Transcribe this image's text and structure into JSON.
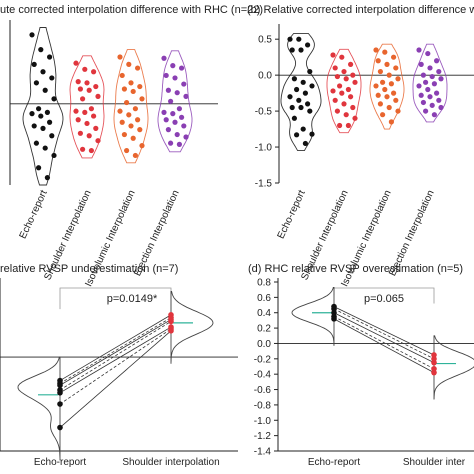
{
  "chart_data": [
    {
      "type": "violin",
      "title": "ute corrected interpolation difference with RHC (n=22)",
      "categories": [
        "Echo-report",
        "Shoulder Interpolation",
        "Isovolumic Interpolation",
        "Ejection Interpolation"
      ],
      "series_colors": [
        "#111111",
        "#e0353d",
        "#e8652e",
        "#8a3fb3"
      ],
      "values": [
        [
          2.8,
          2.2,
          1.9,
          1.6,
          1.3,
          1.05,
          0.85,
          0.55,
          0.2,
          -0.2,
          -0.35,
          -0.4,
          -0.5,
          -0.75,
          -0.9,
          -1.0,
          -1.3,
          -1.6,
          -1.8,
          -2.1,
          -2.6,
          -3.0
        ],
        [
          1.65,
          1.4,
          1.3,
          0.9,
          0.85,
          0.7,
          0.6,
          0.55,
          0.3,
          0.2,
          -0.2,
          -0.3,
          -0.35,
          -0.5,
          -0.65,
          -0.8,
          -1.0,
          -1.2,
          -1.3,
          -1.5,
          -1.85,
          -1.9
        ],
        [
          1.9,
          1.6,
          1.45,
          1.15,
          0.85,
          0.7,
          0.6,
          0.5,
          0.2,
          0.05,
          -0.2,
          -0.3,
          -0.45,
          -0.65,
          -0.75,
          -0.9,
          -1.05,
          -1.25,
          -1.4,
          -1.7,
          -1.9,
          -2.1
        ],
        [
          1.85,
          1.55,
          1.45,
          1.15,
          1.05,
          0.8,
          0.55,
          0.45,
          0.3,
          0.1,
          -0.2,
          -0.35,
          -0.4,
          -0.55,
          -0.65,
          -0.75,
          -0.9,
          -1.05,
          -1.25,
          -1.35,
          -1.6,
          -1.65
        ]
      ],
      "zero_line": 0
    },
    {
      "type": "violin",
      "title": "(b) Relative corrected interpolation difference with RHC (",
      "categories": [
        "Echo-report",
        "Shoulder Interpolation",
        "Isovolumic Interpolation",
        "Ejection Interpolation"
      ],
      "series_colors": [
        "#111111",
        "#e0353d",
        "#e8652e",
        "#8a3fb3"
      ],
      "yticks": [
        0.5,
        0.0,
        -0.5,
        -1.0,
        -1.5
      ],
      "ylim": [
        -1.5,
        0.6
      ],
      "values": [
        [
          0.5,
          0.5,
          0.42,
          0.35,
          0.35,
          0.05,
          -0.05,
          -0.1,
          -0.15,
          -0.2,
          -0.25,
          -0.3,
          -0.35,
          -0.4,
          -0.45,
          -0.45,
          -0.5,
          -0.6,
          -0.75,
          -0.82,
          -0.83,
          -0.95
        ],
        [
          0.28,
          0.25,
          0.15,
          0.1,
          0.05,
          0.0,
          -0.02,
          -0.05,
          -0.1,
          -0.15,
          -0.2,
          -0.22,
          -0.25,
          -0.3,
          -0.35,
          -0.4,
          -0.45,
          -0.5,
          -0.55,
          -0.6,
          -0.7,
          -0.7
        ],
        [
          0.35,
          0.32,
          0.25,
          0.2,
          0.15,
          0.1,
          0.05,
          0.0,
          -0.05,
          -0.1,
          -0.12,
          -0.15,
          -0.2,
          -0.25,
          -0.28,
          -0.3,
          -0.35,
          -0.4,
          -0.45,
          -0.5,
          -0.55,
          -0.65
        ],
        [
          0.35,
          0.3,
          0.2,
          0.15,
          0.1,
          0.05,
          0.0,
          -0.02,
          -0.05,
          -0.1,
          -0.12,
          -0.15,
          -0.2,
          -0.25,
          -0.28,
          -0.3,
          -0.35,
          -0.38,
          -0.42,
          -0.45,
          -0.5,
          -0.55
        ]
      ],
      "zero_line": 0
    },
    {
      "type": "paired-violin",
      "title": "relative RVSP underestimation (n=7)",
      "categories": [
        "Echo-report",
        "Shoulder interpolation"
      ],
      "annotation": "p=0.0149*",
      "pairs": [
        [
          -0.25,
          0.45
        ],
        [
          -0.28,
          0.42
        ],
        [
          -0.3,
          0.4
        ],
        [
          -0.35,
          0.38
        ],
        [
          -0.38,
          0.32
        ],
        [
          -0.5,
          0.3
        ],
        [
          -0.75,
          0.28
        ]
      ],
      "zero_line": 0
    },
    {
      "type": "paired-violin",
      "title": "(d) RHC relative RVSP overestimation (n=5)",
      "categories": [
        "Echo-report",
        "Shoulder inter"
      ],
      "annotation": "p=0.065",
      "yticks": [
        0.8,
        0.6,
        0.4,
        0.2,
        0.0,
        -0.2,
        -0.4,
        -0.6,
        -0.8,
        -1.0,
        -1.2,
        -1.4
      ],
      "ylim": [
        -1.4,
        0.8
      ],
      "pairs": [
        [
          0.48,
          -0.15
        ],
        [
          0.45,
          -0.2
        ],
        [
          0.4,
          -0.25
        ],
        [
          0.35,
          -0.33
        ],
        [
          0.32,
          -0.38
        ]
      ],
      "zero_line": 0
    }
  ]
}
